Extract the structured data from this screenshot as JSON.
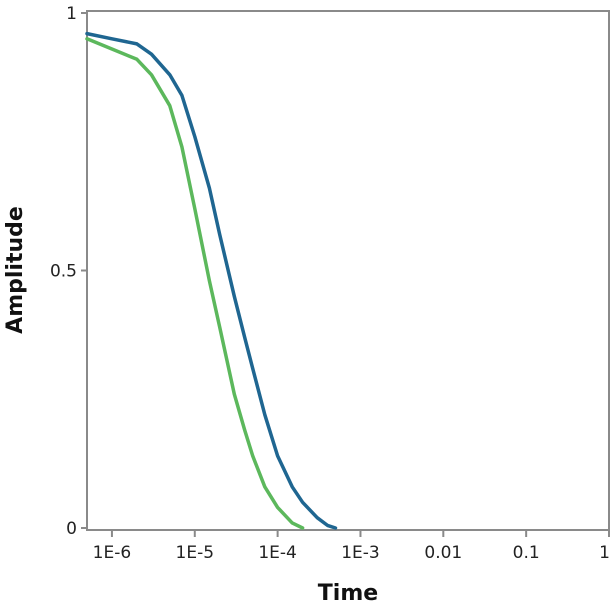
{
  "chart_data": {
    "type": "line",
    "title": "",
    "xlabel": "Time",
    "ylabel": "Amplitude",
    "x_scale": "log",
    "xlim": [
      5e-07,
      1
    ],
    "ylim": [
      0,
      1
    ],
    "grid": false,
    "x_ticks": [
      {
        "value": 1e-06,
        "label": "1E-6"
      },
      {
        "value": 1e-05,
        "label": "1E-5"
      },
      {
        "value": 0.0001,
        "label": "1E-4"
      },
      {
        "value": 0.001,
        "label": "1E-3"
      },
      {
        "value": 0.01,
        "label": "0.01"
      },
      {
        "value": 0.1,
        "label": "0.1"
      },
      {
        "value": 1,
        "label": "1"
      }
    ],
    "y_ticks": [
      {
        "value": 0,
        "label": "0"
      },
      {
        "value": 0.5,
        "label": "0.5"
      },
      {
        "value": 1,
        "label": "1"
      }
    ],
    "series": [
      {
        "color": "#1f6691",
        "x": [
          5e-07,
          1e-06,
          2e-06,
          3e-06,
          5e-06,
          7e-06,
          1e-05,
          1.5e-05,
          2e-05,
          3e-05,
          4e-05,
          5e-05,
          7e-05,
          0.0001,
          0.00015,
          0.0002,
          0.0003,
          0.0004,
          0.0005
        ],
        "y": [
          0.96,
          0.95,
          0.94,
          0.92,
          0.88,
          0.84,
          0.76,
          0.66,
          0.57,
          0.45,
          0.37,
          0.31,
          0.22,
          0.14,
          0.08,
          0.05,
          0.02,
          0.005,
          0.0
        ]
      },
      {
        "color": "#5cb85c",
        "x": [
          5e-07,
          1e-06,
          2e-06,
          3e-06,
          5e-06,
          7e-06,
          1e-05,
          1.5e-05,
          2e-05,
          3e-05,
          4e-05,
          5e-05,
          7e-05,
          0.0001,
          0.00015,
          0.0002
        ],
        "y": [
          0.95,
          0.93,
          0.91,
          0.88,
          0.82,
          0.74,
          0.62,
          0.48,
          0.39,
          0.26,
          0.19,
          0.14,
          0.08,
          0.04,
          0.01,
          0.0
        ]
      }
    ]
  }
}
